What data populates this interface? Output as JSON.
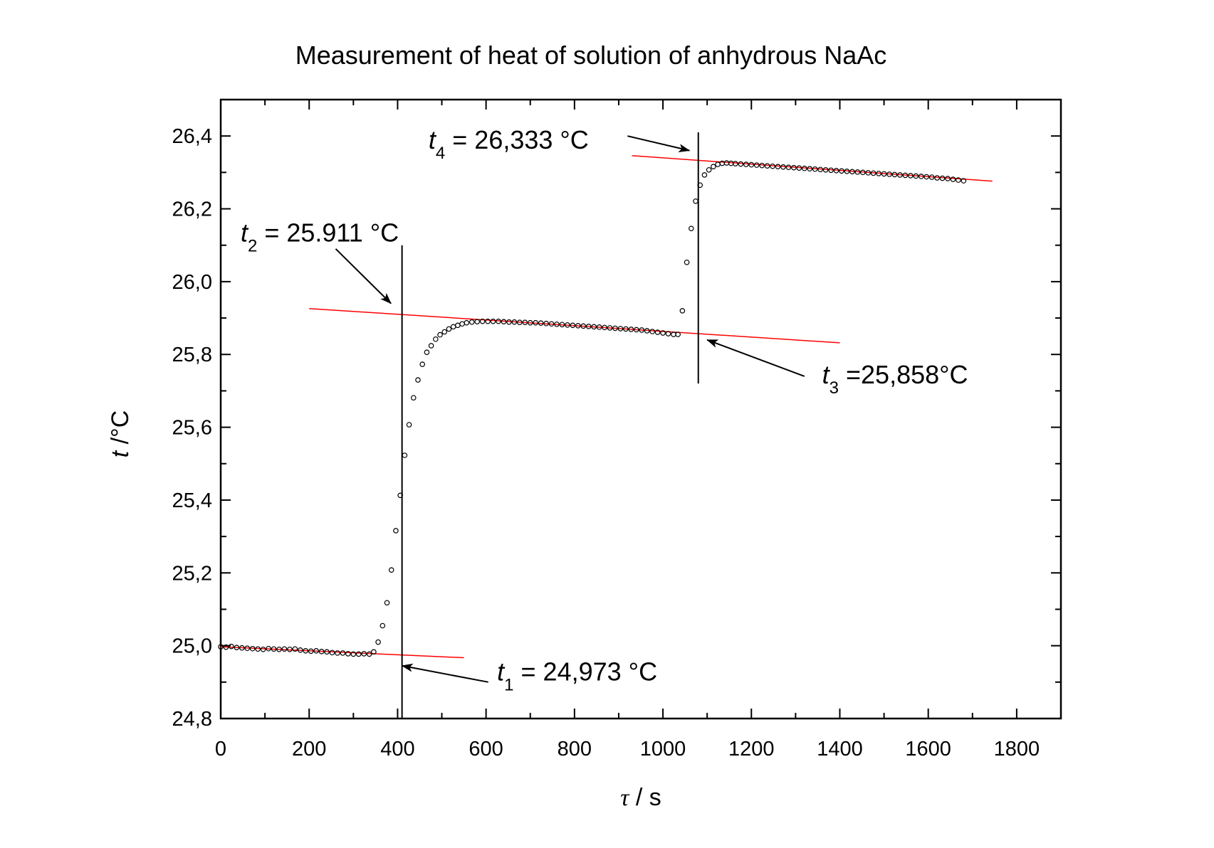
{
  "chart_data": {
    "type": "scatter",
    "title": "Measurement of heat of solution of anhydrous NaAc",
    "xlabel": {
      "symbol": "τ",
      "rest": " / s"
    },
    "ylabel": {
      "symbol": "t",
      "rest": " /°C"
    },
    "xlim": [
      0,
      1900
    ],
    "ylim": [
      24.8,
      26.5
    ],
    "x_ticks": [
      0,
      200,
      400,
      600,
      800,
      1000,
      1200,
      1400,
      1600,
      1800
    ],
    "x_tick_labels": [
      "0",
      "200",
      "400",
      "600",
      "800",
      "1000",
      "1200",
      "1400",
      "1600",
      "1800"
    ],
    "y_ticks": [
      24.8,
      25.0,
      25.2,
      25.4,
      25.6,
      25.8,
      26.0,
      26.2,
      26.4
    ],
    "y_tick_labels": [
      "24,8",
      "25,0",
      "25,2",
      "25,4",
      "25,6",
      "25,8",
      "26,0",
      "26,2",
      "26,4"
    ],
    "grid": false,
    "marker_color": "#000000",
    "fit_color": "#ff0000",
    "series": [
      {
        "marker": "open-circle",
        "points": [
          [
            0,
            24.997
          ],
          [
            12,
            24.996
          ],
          [
            24,
            24.998
          ],
          [
            36,
            24.995
          ],
          [
            48,
            24.994
          ],
          [
            60,
            24.993
          ],
          [
            72,
            24.992
          ],
          [
            84,
            24.991
          ],
          [
            96,
            24.99
          ],
          [
            108,
            24.992
          ],
          [
            120,
            24.991
          ],
          [
            132,
            24.99
          ],
          [
            144,
            24.991
          ],
          [
            156,
            24.99
          ],
          [
            168,
            24.991
          ],
          [
            180,
            24.988
          ],
          [
            192,
            24.986
          ],
          [
            204,
            24.985
          ],
          [
            216,
            24.986
          ],
          [
            228,
            24.984
          ],
          [
            240,
            24.983
          ],
          [
            252,
            24.981
          ],
          [
            264,
            24.98
          ],
          [
            276,
            24.98
          ],
          [
            288,
            24.978
          ],
          [
            300,
            24.977
          ],
          [
            312,
            24.977
          ],
          [
            324,
            24.978
          ],
          [
            336,
            24.977
          ],
          [
            346,
            24.983
          ],
          [
            356,
            25.01
          ],
          [
            366,
            25.055
          ],
          [
            376,
            25.118
          ],
          [
            386,
            25.208
          ],
          [
            396,
            25.316
          ],
          [
            406,
            25.413
          ],
          [
            416,
            25.523
          ],
          [
            426,
            25.607
          ],
          [
            436,
            25.681
          ],
          [
            446,
            25.73
          ],
          [
            456,
            25.773
          ],
          [
            466,
            25.806
          ],
          [
            476,
            25.824
          ],
          [
            486,
            25.842
          ],
          [
            496,
            25.854
          ],
          [
            506,
            25.862
          ],
          [
            516,
            25.87
          ],
          [
            526,
            25.876
          ],
          [
            536,
            25.88
          ],
          [
            546,
            25.884
          ],
          [
            556,
            25.887
          ],
          [
            568,
            25.889
          ],
          [
            580,
            25.89
          ],
          [
            592,
            25.891
          ],
          [
            604,
            25.891
          ],
          [
            616,
            25.891
          ],
          [
            628,
            25.891
          ],
          [
            640,
            25.89
          ],
          [
            652,
            25.889
          ],
          [
            664,
            25.889
          ],
          [
            676,
            25.888
          ],
          [
            688,
            25.888
          ],
          [
            700,
            25.887
          ],
          [
            712,
            25.887
          ],
          [
            724,
            25.886
          ],
          [
            736,
            25.885
          ],
          [
            748,
            25.884
          ],
          [
            760,
            25.883
          ],
          [
            772,
            25.882
          ],
          [
            784,
            25.881
          ],
          [
            796,
            25.88
          ],
          [
            808,
            25.879
          ],
          [
            820,
            25.878
          ],
          [
            832,
            25.877
          ],
          [
            844,
            25.876
          ],
          [
            856,
            25.875
          ],
          [
            868,
            25.874
          ],
          [
            880,
            25.873
          ],
          [
            892,
            25.872
          ],
          [
            904,
            25.871
          ],
          [
            916,
            25.87
          ],
          [
            928,
            25.869
          ],
          [
            940,
            25.868
          ],
          [
            952,
            25.867
          ],
          [
            964,
            25.865
          ],
          [
            976,
            25.863
          ],
          [
            988,
            25.861
          ],
          [
            1000,
            25.859
          ],
          [
            1012,
            25.857
          ],
          [
            1024,
            25.855
          ],
          [
            1034,
            25.855
          ],
          [
            1044,
            25.92
          ],
          [
            1054,
            26.053
          ],
          [
            1064,
            26.146
          ],
          [
            1074,
            26.221
          ],
          [
            1084,
            26.265
          ],
          [
            1094,
            26.293
          ],
          [
            1104,
            26.307
          ],
          [
            1114,
            26.316
          ],
          [
            1124,
            26.322
          ],
          [
            1134,
            26.325
          ],
          [
            1144,
            26.326
          ],
          [
            1154,
            26.325
          ],
          [
            1164,
            26.324
          ],
          [
            1176,
            26.323
          ],
          [
            1188,
            26.322
          ],
          [
            1200,
            26.321
          ],
          [
            1212,
            26.32
          ],
          [
            1224,
            26.319
          ],
          [
            1236,
            26.318
          ],
          [
            1248,
            26.317
          ],
          [
            1260,
            26.316
          ],
          [
            1272,
            26.315
          ],
          [
            1284,
            26.314
          ],
          [
            1296,
            26.313
          ],
          [
            1308,
            26.312
          ],
          [
            1320,
            26.311
          ],
          [
            1332,
            26.31
          ],
          [
            1344,
            26.309
          ],
          [
            1356,
            26.308
          ],
          [
            1368,
            26.307
          ],
          [
            1380,
            26.306
          ],
          [
            1392,
            26.305
          ],
          [
            1404,
            26.304
          ],
          [
            1416,
            26.303
          ],
          [
            1428,
            26.302
          ],
          [
            1440,
            26.301
          ],
          [
            1452,
            26.3
          ],
          [
            1464,
            26.299
          ],
          [
            1476,
            26.298
          ],
          [
            1488,
            26.297
          ],
          [
            1500,
            26.296
          ],
          [
            1512,
            26.295
          ],
          [
            1524,
            26.294
          ],
          [
            1536,
            26.293
          ],
          [
            1548,
            26.292
          ],
          [
            1560,
            26.291
          ],
          [
            1572,
            26.29
          ],
          [
            1584,
            26.289
          ],
          [
            1596,
            26.288
          ],
          [
            1608,
            26.287
          ],
          [
            1620,
            26.285
          ],
          [
            1632,
            26.284
          ],
          [
            1644,
            26.283
          ],
          [
            1656,
            26.281
          ],
          [
            1668,
            26.279
          ],
          [
            1680,
            26.277
          ]
        ]
      }
    ],
    "fit_lines": [
      {
        "x": [
          0,
          550
        ],
        "y": [
          24.997,
          24.967
        ]
      },
      {
        "x": [
          200,
          1400
        ],
        "y": [
          25.926,
          25.832
        ]
      },
      {
        "x": [
          930,
          1745
        ],
        "y": [
          26.346,
          26.276
        ]
      }
    ],
    "vertical_lines": [
      {
        "x": 410,
        "y": [
          24.8,
          26.1
        ]
      },
      {
        "x": 1080,
        "y": [
          25.72,
          26.41
        ]
      }
    ],
    "annotations": [
      {
        "symbol": "t",
        "sub": "1",
        "text": " = 24,973 °C",
        "at": [
          625,
          24.905
        ],
        "arrow_from": [
          605,
          24.9
        ],
        "arrow_to": [
          410,
          24.945
        ]
      },
      {
        "symbol": "t",
        "sub": "2",
        "text": " = 25.911 °C",
        "at": [
          45,
          26.11
        ],
        "arrow_from": [
          260,
          26.09
        ],
        "arrow_to": [
          385,
          25.94
        ]
      },
      {
        "symbol": "t",
        "sub": "3",
        "text": " =25,858°C",
        "at": [
          1360,
          25.72
        ],
        "arrow_from": [
          1320,
          25.74
        ],
        "arrow_to": [
          1100,
          25.84
        ]
      },
      {
        "symbol": "t",
        "sub": "4",
        "text": " = 26,333 °C",
        "at": [
          470,
          26.365
        ],
        "arrow_from": [
          920,
          26.4
        ],
        "arrow_to": [
          1060,
          26.36
        ]
      }
    ]
  }
}
